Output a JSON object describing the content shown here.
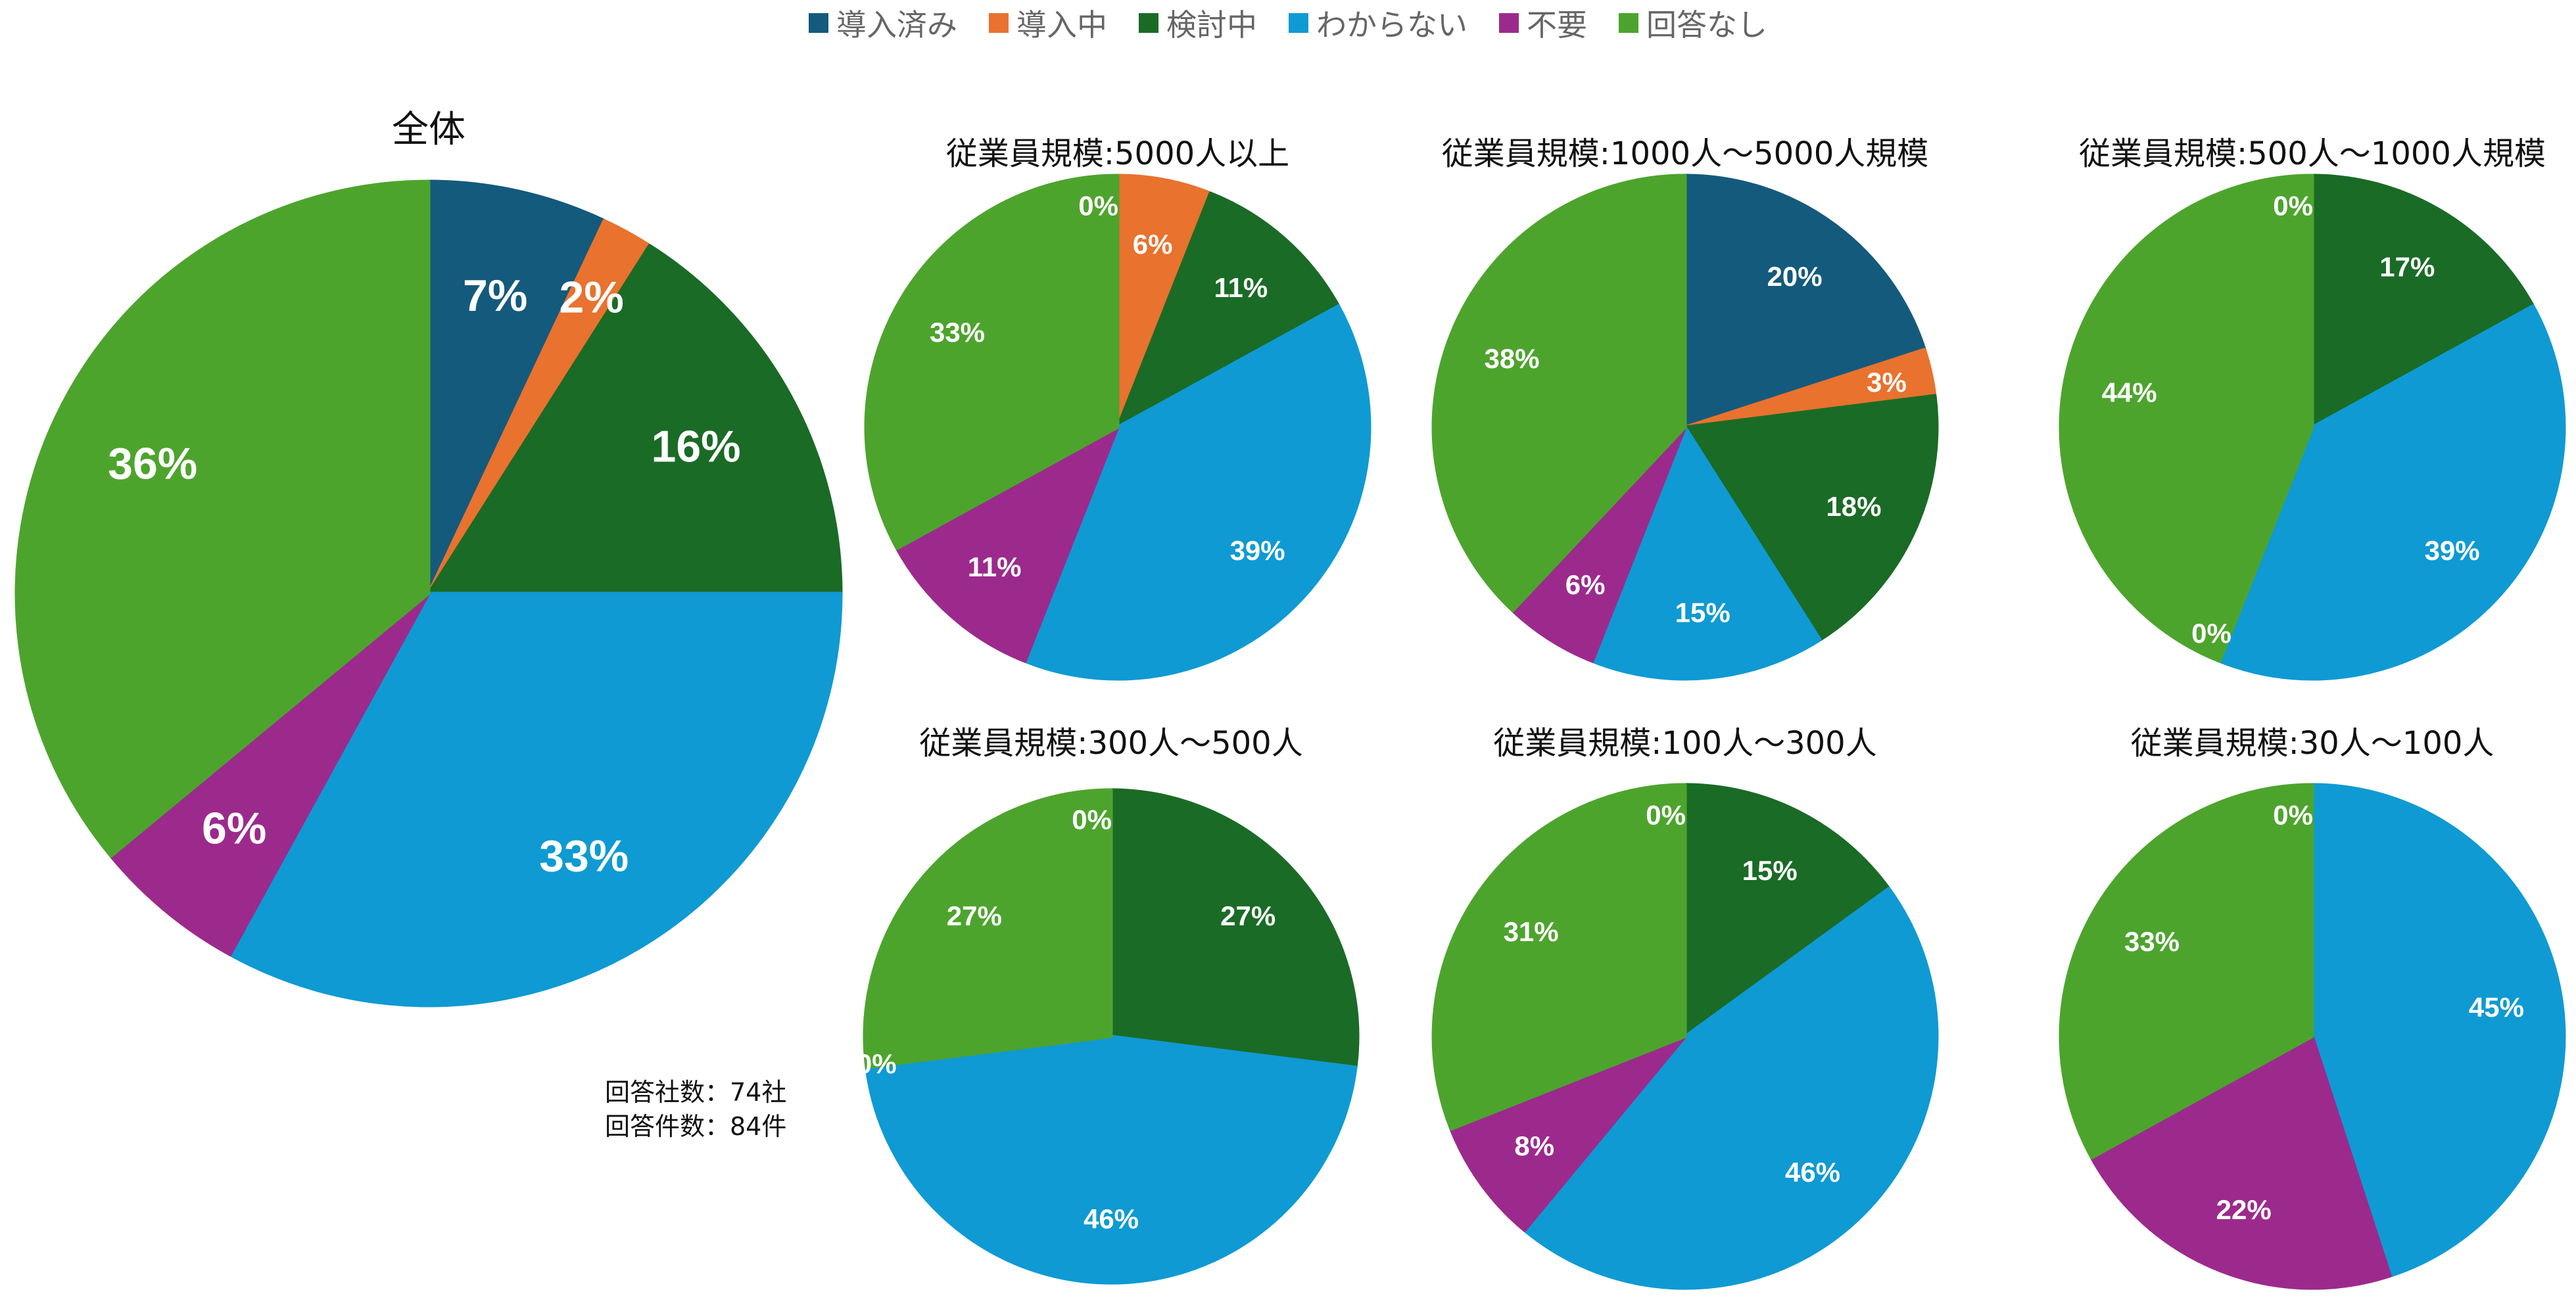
{
  "legend": {
    "items": [
      {
        "label": "導入済み",
        "color": "#145a7d"
      },
      {
        "label": "導入中",
        "color": "#e8722e"
      },
      {
        "label": "検討中",
        "color": "#1a6b26"
      },
      {
        "label": "わからない",
        "color": "#0f9ad3"
      },
      {
        "label": "不要",
        "color": "#9c2a8c"
      },
      {
        "label": "回答なし",
        "color": "#4da42d"
      }
    ]
  },
  "note": {
    "companies": "回答社数：74社",
    "responses": "回答件数：84件"
  },
  "chart_data": [
    {
      "type": "pie",
      "title": "全体",
      "categories": [
        "導入済み",
        "導入中",
        "検討中",
        "わからない",
        "不要",
        "回答なし"
      ],
      "values": [
        7,
        2,
        16,
        33,
        6,
        36
      ],
      "labels": [
        "7%",
        "2%",
        "16%",
        "33%",
        "6%",
        "36%"
      ]
    },
    {
      "type": "pie",
      "title": "従業員規模:5000人以上",
      "categories": [
        "導入済み",
        "導入中",
        "検討中",
        "わからない",
        "不要",
        "回答なし"
      ],
      "values": [
        0,
        6,
        11,
        39,
        11,
        33
      ],
      "labels": [
        "0%",
        "6%",
        "11%",
        "39%",
        "11%",
        "33%"
      ]
    },
    {
      "type": "pie",
      "title": "従業員規模:1000人〜5000人規模",
      "categories": [
        "導入済み",
        "導入中",
        "検討中",
        "わからない",
        "不要",
        "回答なし"
      ],
      "values": [
        20,
        3,
        18,
        15,
        6,
        38
      ],
      "labels": [
        "20%",
        "3%",
        "18%",
        "15%",
        "6%",
        "38%"
      ]
    },
    {
      "type": "pie",
      "title": "従業員規模:500人〜1000人規模",
      "categories": [
        "導入済み",
        "検討中",
        "わからない",
        "不要",
        "回答なし"
      ],
      "values": [
        0,
        17,
        39,
        0,
        44
      ],
      "labels": [
        "0%",
        "17%",
        "39%",
        "0%",
        "44%"
      ]
    },
    {
      "type": "pie",
      "title": "従業員規模:300人〜500人",
      "categories": [
        "導入済み",
        "検討中",
        "わからない",
        "不要",
        "回答なし"
      ],
      "values": [
        0,
        27,
        46,
        0,
        27
      ],
      "labels": [
        "0%",
        "27%",
        "46%",
        "0%",
        "27%"
      ]
    },
    {
      "type": "pie",
      "title": "従業員規模:100人〜300人",
      "categories": [
        "導入済み",
        "検討中",
        "わからない",
        "不要",
        "回答なし"
      ],
      "values": [
        0,
        15,
        46,
        8,
        31
      ],
      "labels": [
        "0%",
        "15%",
        "46%",
        "8%",
        "31%"
      ]
    },
    {
      "type": "pie",
      "title": "従業員規模:30人〜100人",
      "categories": [
        "導入済み",
        "わからない",
        "不要",
        "回答なし"
      ],
      "values": [
        0,
        45,
        22,
        33
      ],
      "labels": [
        "0%",
        "45%",
        "22%",
        "33%"
      ]
    }
  ]
}
